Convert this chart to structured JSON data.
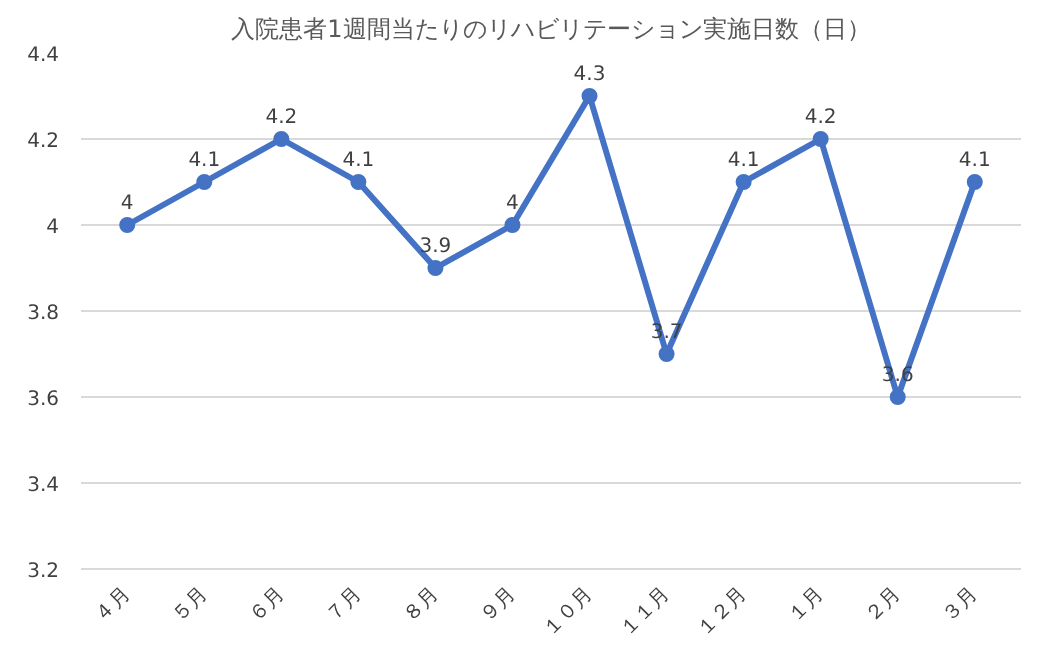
{
  "chart_data": {
    "type": "line",
    "title": "入院患者1週間当たりのリハビリテーション実施日数（日）",
    "categories": [
      "４月",
      "５月",
      "６月",
      "７月",
      "８月",
      "９月",
      "１０月",
      "１１月",
      "１２月",
      "１月",
      "２月",
      "３月"
    ],
    "series": [
      {
        "color": "#4472c4",
        "values": [
          4,
          4.1,
          4.2,
          4.1,
          3.9,
          4,
          4.3,
          3.7,
          4.1,
          4.2,
          3.6,
          4.1
        ]
      }
    ],
    "ylim": [
      3.2,
      4.4
    ],
    "yticks": [
      3.2,
      3.4,
      3.6,
      3.8,
      4,
      4.2,
      4.4
    ],
    "grid": "y",
    "marker": "circle",
    "line_style": "solid",
    "data_labels": true
  }
}
